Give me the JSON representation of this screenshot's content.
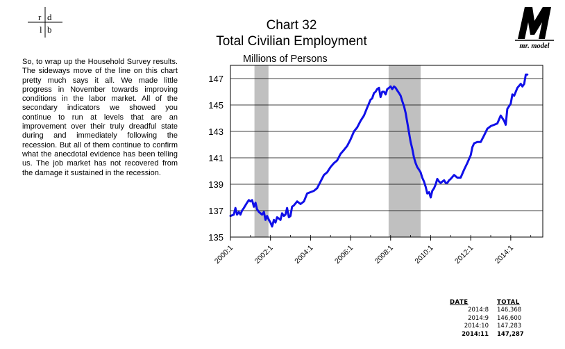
{
  "logo": {
    "letters": [
      "r",
      "d",
      "l",
      "b"
    ]
  },
  "brand": {
    "text": "mr. model"
  },
  "header": {
    "title": "Chart 32",
    "subtitle": "Total Civilian Employment",
    "units": "Millions of Persons"
  },
  "narrative": "So, to wrap up the Household Survey results.  The sideways move of the line on this chart pretty much says it all.  We made little progress in November towards improving conditions in the labor market.  All of the secondary indicators we showed you continue to run at levels that are an improvement over their truly dreadful state during and immediately following the recession.  But all of them continue to confirm what the anecdotal evidence has been telling us.  The job market has not recovered from the damage it sustained in the recession.",
  "table": {
    "headers": [
      "DATE",
      "TOTAL"
    ],
    "rows": [
      [
        "2014:8",
        "146,368"
      ],
      [
        "2014:9",
        "146,600"
      ],
      [
        "2014:10",
        "147,283"
      ],
      [
        "2014:11",
        "147,287"
      ]
    ]
  },
  "chart_data": {
    "type": "line",
    "title": "Chart 32",
    "subtitle": "Total Civilian Employment",
    "ylabel": "Millions of Persons",
    "ylim": [
      135,
      148
    ],
    "yticks": [
      135,
      137,
      139,
      141,
      143,
      145,
      147
    ],
    "xlim": [
      2000.0,
      2015.6
    ],
    "xticks": [
      "2000:1",
      "2002:1",
      "2004:1",
      "2006:1",
      "2008:1",
      "2010:1",
      "2012:1",
      "2014:1"
    ],
    "grid": "horizontal",
    "line_color": "#1010e8",
    "recession_color": "#c0c0c0",
    "recessions": [
      [
        2001.2,
        2001.9
      ],
      [
        2007.9,
        2009.5
      ]
    ],
    "series": [
      {
        "x": [
          2000.0,
          2000.17,
          2000.25,
          2000.33,
          2000.42,
          2000.5,
          2000.58,
          2000.67,
          2000.75,
          2000.83,
          2000.92,
          2001.0,
          2001.08,
          2001.17,
          2001.25,
          2001.33,
          2001.42,
          2001.5,
          2001.58,
          2001.67,
          2001.75,
          2001.83,
          2001.92,
          2002.0,
          2002.08,
          2002.17,
          2002.25,
          2002.33,
          2002.42,
          2002.5,
          2002.58,
          2002.67,
          2002.75,
          2002.83,
          2002.92,
          2003.0,
          2003.08,
          2003.17,
          2003.33,
          2003.5,
          2003.67,
          2003.83,
          2004.0,
          2004.17,
          2004.33,
          2004.5,
          2004.67,
          2004.83,
          2005.0,
          2005.17,
          2005.33,
          2005.5,
          2005.67,
          2005.83,
          2006.0,
          2006.17,
          2006.33,
          2006.5,
          2006.67,
          2006.83,
          2007.0,
          2007.08,
          2007.17,
          2007.25,
          2007.33,
          2007.42,
          2007.5,
          2007.58,
          2007.67,
          2007.75,
          2007.83,
          2007.92,
          2008.0,
          2008.08,
          2008.17,
          2008.25,
          2008.33,
          2008.42,
          2008.5,
          2008.58,
          2008.67,
          2008.75,
          2008.83,
          2008.92,
          2009.0,
          2009.08,
          2009.17,
          2009.25,
          2009.33,
          2009.42,
          2009.5,
          2009.58,
          2009.67,
          2009.75,
          2009.83,
          2009.92,
          2010.0,
          2010.08,
          2010.17,
          2010.25,
          2010.33,
          2010.42,
          2010.5,
          2010.58,
          2010.67,
          2010.75,
          2010.83,
          2010.92,
          2011.0,
          2011.17,
          2011.33,
          2011.5,
          2011.67,
          2011.83,
          2012.0,
          2012.08,
          2012.17,
          2012.33,
          2012.5,
          2012.67,
          2012.83,
          2013.0,
          2013.17,
          2013.33,
          2013.5,
          2013.67,
          2013.75,
          2013.83,
          2014.0,
          2014.08,
          2014.17,
          2014.33,
          2014.5,
          2014.58,
          2014.67,
          2014.75,
          2014.83
        ],
        "y": [
          136.6,
          136.7,
          137.2,
          136.7,
          136.9,
          136.7,
          137.0,
          137.2,
          137.4,
          137.6,
          137.8,
          137.7,
          137.8,
          137.3,
          137.6,
          137.1,
          136.9,
          136.8,
          136.7,
          136.9,
          136.3,
          136.6,
          136.3,
          136.1,
          135.8,
          136.3,
          136.1,
          136.5,
          136.4,
          136.3,
          136.8,
          136.6,
          136.7,
          137.2,
          136.5,
          136.6,
          137.3,
          137.4,
          137.7,
          137.5,
          137.7,
          138.3,
          138.4,
          138.5,
          138.7,
          139.2,
          139.7,
          139.9,
          140.3,
          140.6,
          140.8,
          141.3,
          141.6,
          141.9,
          142.4,
          143.0,
          143.3,
          143.8,
          144.2,
          144.8,
          145.4,
          145.5,
          145.9,
          146.0,
          146.2,
          146.3,
          145.6,
          146.0,
          146.0,
          145.8,
          146.2,
          146.3,
          146.4,
          146.2,
          146.4,
          146.3,
          146.1,
          145.9,
          145.7,
          145.3,
          144.9,
          144.4,
          143.7,
          142.9,
          142.2,
          141.7,
          141.0,
          140.6,
          140.3,
          140.1,
          139.9,
          139.5,
          139.2,
          138.8,
          138.3,
          138.4,
          138.0,
          138.5,
          138.7,
          139.0,
          139.4,
          139.2,
          139.1,
          139.2,
          139.3,
          139.1,
          139.1,
          139.3,
          139.4,
          139.7,
          139.5,
          139.5,
          140.1,
          140.6,
          141.2,
          141.8,
          142.1,
          142.2,
          142.2,
          142.7,
          143.2,
          143.4,
          143.5,
          143.6,
          144.2,
          143.8,
          143.5,
          144.7,
          145.1,
          145.8,
          145.7,
          146.3,
          146.6,
          146.4,
          146.6,
          147.3,
          147.3
        ]
      }
    ]
  }
}
